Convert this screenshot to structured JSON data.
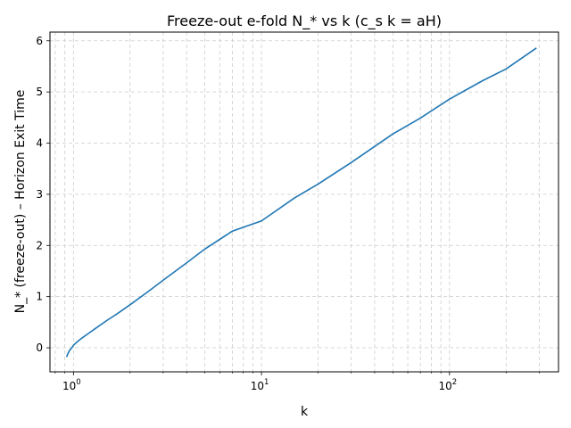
{
  "chart_data": {
    "type": "line",
    "title": "Freeze-out e-fold N_* vs k (c_s k = aH)",
    "xlabel": "k",
    "ylabel": "N_* (freeze-out) – Horizon Exit Time",
    "xscale": "log",
    "xlim": [
      0.75,
      380
    ],
    "ylim": [
      -0.47,
      6.17
    ],
    "grid": true,
    "legend": "none",
    "line_color": "#1f77b4",
    "x_ticks": [
      {
        "value": 1,
        "base": "10",
        "exp": "0"
      },
      {
        "value": 10,
        "base": "10",
        "exp": "1"
      },
      {
        "value": 100,
        "base": "10",
        "exp": "2"
      }
    ],
    "y_ticks": [
      "0",
      "1",
      "2",
      "3",
      "4",
      "5",
      "6"
    ],
    "series": [
      {
        "x": [
          0.92,
          0.93,
          0.95,
          0.98,
          1.0,
          1.05,
          1.1,
          1.2,
          1.3,
          1.5,
          1.7,
          2.0,
          2.5,
          3.0,
          4.0,
          5.0,
          7.0,
          10.0,
          15.0,
          20.0,
          30.0,
          50.0,
          70.0,
          100.0,
          150.0,
          200.0,
          290.0
        ],
        "y": [
          -0.18,
          -0.13,
          -0.06,
          0.0,
          0.05,
          0.12,
          0.18,
          0.28,
          0.37,
          0.53,
          0.66,
          0.84,
          1.1,
          1.32,
          1.66,
          1.93,
          2.28,
          2.48,
          2.93,
          3.2,
          3.62,
          4.18,
          4.49,
          4.86,
          5.22,
          5.45,
          5.86
        ]
      }
    ]
  }
}
